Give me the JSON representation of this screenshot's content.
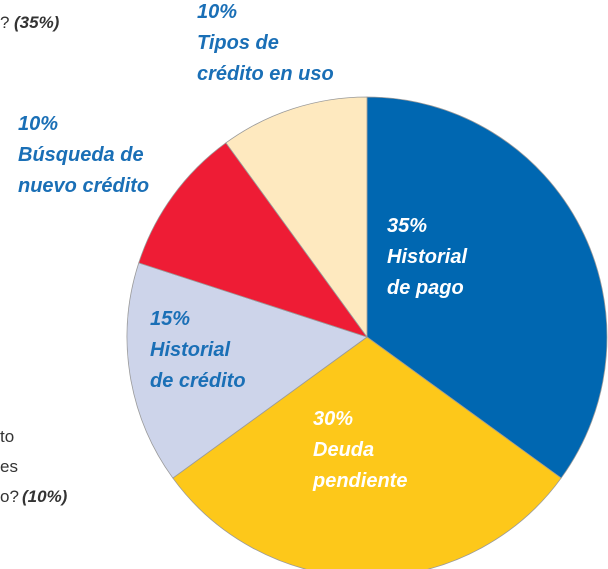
{
  "chart_data": {
    "type": "pie",
    "categories": [
      [
        "Historial",
        "de pago"
      ],
      [
        "Deuda",
        "pendiente"
      ],
      [
        "Historial",
        "de crédito"
      ],
      [
        "Búsqueda de",
        "nuevo crédito"
      ],
      [
        "Tipos de",
        "crédito en uso"
      ]
    ],
    "values": [
      35,
      30,
      15,
      10,
      10
    ],
    "value_labels": [
      "35%",
      "30%",
      "15%",
      "10%",
      "10%"
    ],
    "colors": [
      "#0067b1",
      "#fdc81a",
      "#cdd4ea",
      "#ee1c35",
      "#fee9bf"
    ],
    "annotations": [
      "?",
      "(35%)",
      "to",
      "es",
      "o?",
      "(10%)"
    ]
  }
}
